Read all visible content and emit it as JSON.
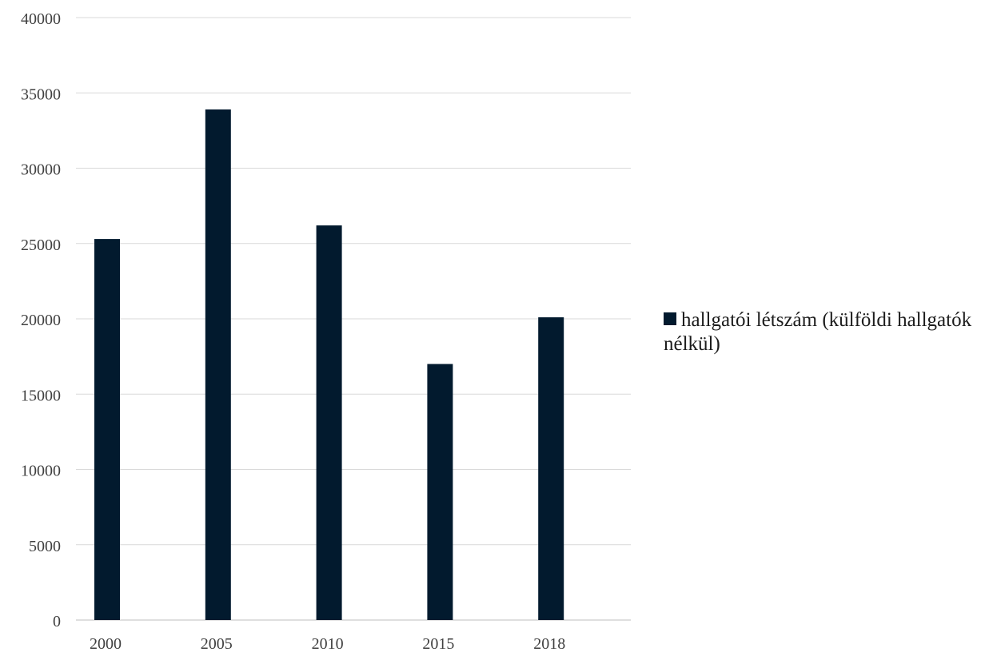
{
  "chart_data": {
    "type": "bar",
    "categories": [
      "2000",
      "2005",
      "2010",
      "2015",
      "2018"
    ],
    "series": [
      {
        "name": "hallgatói létszám (külföldi hallgatók nélkül)",
        "values": [
          25300,
          33900,
          26200,
          17000,
          20100
        ],
        "color": "#021a2e"
      }
    ],
    "title": "",
    "xlabel": "",
    "ylabel": "",
    "ylim": [
      0,
      40000
    ],
    "yticks": [
      0,
      5000,
      10000,
      15000,
      20000,
      25000,
      30000,
      35000,
      40000
    ],
    "grid": true,
    "legend_position": "right"
  }
}
